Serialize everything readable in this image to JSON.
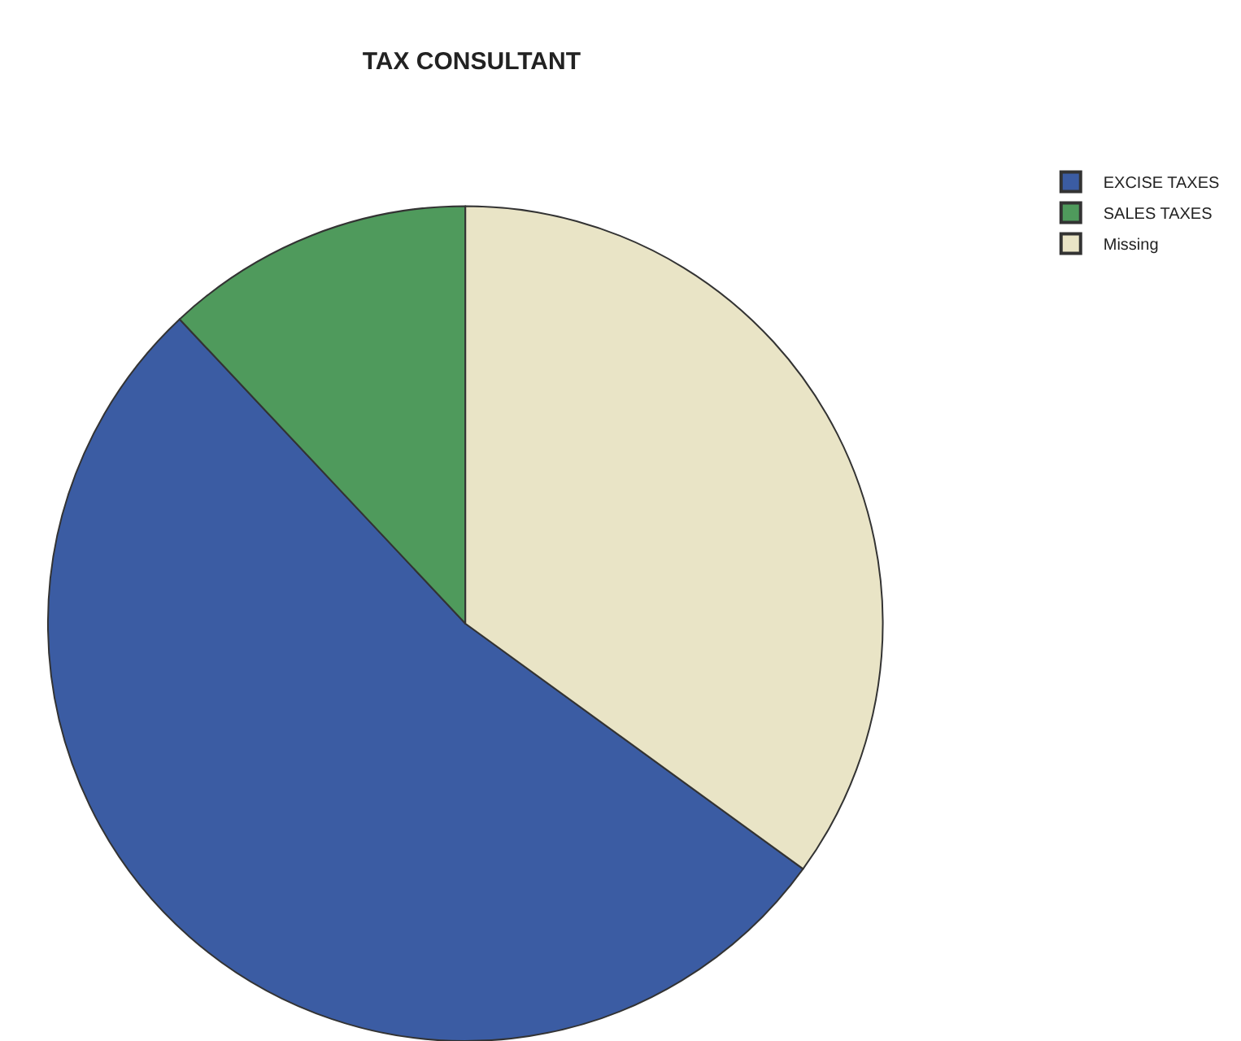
{
  "chart_data": {
    "type": "pie",
    "title": "TAX CONSULTANT",
    "categories": [
      "EXCISE TAXES",
      "SALES TAXES",
      "Missing"
    ],
    "values": [
      53,
      12,
      35
    ],
    "colors": [
      "#3b5ca3",
      "#4f9a5c",
      "#e9e4c6"
    ],
    "legend": "top right"
  }
}
